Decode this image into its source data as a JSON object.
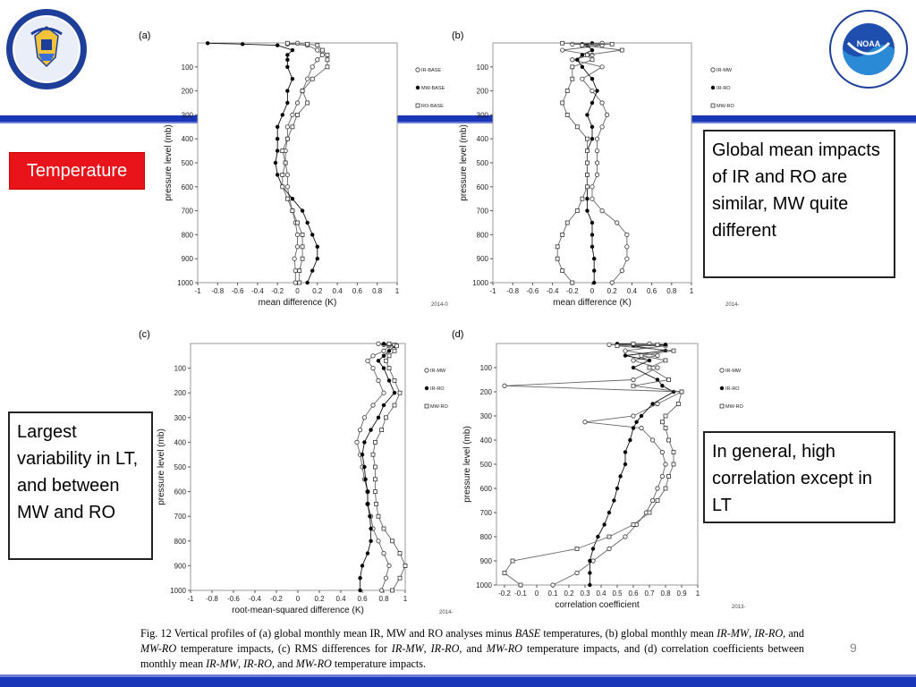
{
  "tag": "Temperature",
  "notes": {
    "top_right": "Global mean impacts of IR and RO are similar, MW quite different",
    "left": "Largest variability in LT, and between MW and RO",
    "bottom_right": "In general, high correlation except in LT"
  },
  "page_number": "9",
  "caption": {
    "p1": "Fig. 12 Vertical profiles of (a) global monthly mean IR, MW and RO analyses minus ",
    "p2": "BASE",
    "p3": " temperatures, (b) global monthly mean ",
    "p4": "IR-MW",
    "p5": ", ",
    "p6": "IR-RO",
    "p7": ", and ",
    "p8": "MW-RO",
    "p9": " temperature impacts, (c) RMS differences for ",
    "p10": "IR-MW",
    "p11": ", ",
    "p12": "IR-RO",
    "p13": ", and ",
    "p14": "MW-RO",
    "p15": " temperature impacts, and (d) correlation coefficients between monthly mean ",
    "p16": "IR-MW",
    "p17": ", ",
    "p18": "IR-RO",
    "p19": ", and ",
    "p20": "MW-RO",
    "p21": " temperature impacts."
  },
  "colors": {
    "bar": "#1a36b8",
    "tag": "#e8141a"
  },
  "chart_data": [
    {
      "panel": "(a)",
      "type": "line",
      "xlabel": "mean difference (K)",
      "ylabel": "pressure level (mb)",
      "xlim": [
        -1,
        1
      ],
      "ylim": [
        1000,
        0
      ],
      "xticks": [
        "-1",
        "-0.8",
        "-0.6",
        "-0.4",
        "-0.2",
        "0",
        "0.2",
        "0.4",
        "0.6",
        "0.8",
        "1"
      ],
      "yticks": [
        100,
        200,
        300,
        400,
        500,
        600,
        700,
        800,
        900,
        1000
      ],
      "footer": "2014-0",
      "legend": "right",
      "pressure": [
        1,
        5,
        10,
        30,
        50,
        70,
        100,
        150,
        200,
        250,
        300,
        350,
        400,
        450,
        500,
        550,
        600,
        650,
        700,
        750,
        800,
        850,
        900,
        950,
        1000
      ],
      "series": [
        {
          "name": "IR-BASE",
          "marker": "open-circle",
          "values": [
            0.0,
            -0.1,
            0.1,
            0.2,
            0.25,
            0.2,
            0.15,
            0.1,
            0.05,
            0.0,
            -0.05,
            -0.1,
            -0.1,
            -0.12,
            -0.12,
            -0.1,
            -0.1,
            -0.08,
            -0.05,
            -0.02,
            0.0,
            0.0,
            -0.03,
            -0.02,
            -0.02
          ]
        },
        {
          "name": "MW-BASE",
          "marker": "filled-circle",
          "values": [
            -0.9,
            -0.55,
            -0.2,
            -0.05,
            -0.1,
            -0.1,
            -0.1,
            -0.05,
            -0.1,
            -0.1,
            -0.15,
            -0.2,
            -0.2,
            -0.2,
            -0.22,
            -0.2,
            -0.15,
            -0.05,
            0.05,
            0.1,
            0.15,
            0.2,
            0.2,
            0.15,
            0.1
          ]
        },
        {
          "name": "RO-BASE",
          "marker": "open-square",
          "values": [
            -0.1,
            0.1,
            0.2,
            0.25,
            0.3,
            0.3,
            0.3,
            0.15,
            0.05,
            0.1,
            0.0,
            -0.05,
            -0.1,
            -0.15,
            -0.12,
            -0.15,
            -0.15,
            -0.1,
            -0.05,
            0.0,
            0.05,
            0.05,
            0.05,
            0.02,
            0.02
          ]
        }
      ]
    },
    {
      "panel": "(b)",
      "type": "line",
      "xlabel": "mean difference (K)",
      "ylabel": "pressure level (mb)",
      "xlim": [
        -1,
        1
      ],
      "ylim": [
        1000,
        0
      ],
      "xticks": [
        "-1",
        "-0.8",
        "-0.6",
        "-0.4",
        "-0.2",
        "0",
        "0.2",
        "0.4",
        "0.6",
        "0.8",
        "1"
      ],
      "yticks": [
        100,
        200,
        300,
        400,
        500,
        600,
        700,
        800,
        900,
        1000
      ],
      "footer": "2014-",
      "legend": "right",
      "pressure": [
        1,
        5,
        10,
        30,
        50,
        70,
        100,
        150,
        200,
        250,
        300,
        350,
        400,
        450,
        500,
        550,
        600,
        650,
        700,
        750,
        800,
        850,
        900,
        950,
        1000
      ],
      "series": [
        {
          "name": "IR-MW",
          "marker": "open-circle",
          "values": [
            0.1,
            -0.2,
            0.1,
            -0.3,
            0.0,
            -0.2,
            0.1,
            -0.1,
            0.0,
            0.1,
            0.15,
            0.1,
            0.05,
            0.05,
            0.05,
            0.05,
            0.0,
            0.0,
            0.1,
            0.25,
            0.35,
            0.35,
            0.35,
            0.3,
            0.2
          ]
        },
        {
          "name": "IR-RO",
          "marker": "filled-circle",
          "values": [
            0.0,
            -0.1,
            -0.05,
            0.0,
            -0.1,
            -0.15,
            -0.1,
            0.0,
            0.05,
            0.0,
            -0.05,
            0.0,
            0.0,
            -0.05,
            -0.05,
            -0.05,
            -0.05,
            -0.05,
            -0.05,
            0.0,
            0.0,
            0.0,
            0.02,
            0.02,
            0.02
          ]
        },
        {
          "name": "MW-RO",
          "marker": "open-square",
          "values": [
            -0.3,
            0.2,
            -0.1,
            0.3,
            -0.05,
            0.0,
            -0.2,
            -0.2,
            -0.25,
            -0.3,
            -0.25,
            -0.15,
            -0.05,
            -0.05,
            -0.05,
            -0.05,
            -0.05,
            -0.1,
            -0.15,
            -0.25,
            -0.3,
            -0.35,
            -0.35,
            -0.3,
            -0.2
          ]
        }
      ]
    },
    {
      "panel": "(c)",
      "type": "line",
      "xlabel": "root-mean-squared difference (K)",
      "ylabel": "pressure level (mb)",
      "xlim": [
        -1,
        1
      ],
      "ylim": [
        1000,
        0
      ],
      "xticks": [
        "-1",
        "-0.8",
        "-0.6",
        "-0.4",
        "-0.2",
        "0",
        "0.2",
        "0.4",
        "0.6",
        "0.8",
        "1"
      ],
      "yticks": [
        100,
        200,
        300,
        400,
        500,
        600,
        700,
        800,
        900,
        1000
      ],
      "footer": "2014-",
      "legend": "right",
      "pressure": [
        1,
        5,
        10,
        30,
        50,
        70,
        100,
        150,
        200,
        250,
        300,
        350,
        400,
        450,
        500,
        550,
        600,
        650,
        700,
        750,
        800,
        850,
        900,
        950,
        1000
      ],
      "series": [
        {
          "name": "IR-MW",
          "marker": "open-circle",
          "values": [
            0.75,
            0.8,
            0.85,
            0.8,
            0.7,
            0.65,
            0.7,
            0.75,
            0.8,
            0.7,
            0.62,
            0.58,
            0.55,
            0.58,
            0.6,
            0.62,
            0.65,
            0.65,
            0.68,
            0.7,
            0.75,
            0.8,
            0.85,
            0.82,
            0.78
          ]
        },
        {
          "name": "IR-RO",
          "marker": "filled-circle",
          "values": [
            0.8,
            0.85,
            0.9,
            0.85,
            0.8,
            0.75,
            0.8,
            0.85,
            0.9,
            0.8,
            0.75,
            0.68,
            0.62,
            0.6,
            0.62,
            0.63,
            0.65,
            0.65,
            0.67,
            0.68,
            0.68,
            0.65,
            0.6,
            0.58,
            0.58
          ]
        },
        {
          "name": "MW-RO",
          "marker": "open-square",
          "values": [
            0.85,
            0.9,
            0.92,
            0.9,
            0.85,
            0.82,
            0.85,
            0.9,
            0.95,
            0.9,
            0.82,
            0.78,
            0.72,
            0.7,
            0.72,
            0.72,
            0.72,
            0.73,
            0.75,
            0.8,
            0.88,
            0.95,
            1.0,
            0.95,
            0.88
          ]
        }
      ]
    },
    {
      "panel": "(d)",
      "type": "line",
      "xlabel": "correlation coefficient",
      "ylabel": "pressure level (mb)",
      "xlim": [
        -0.25,
        1
      ],
      "ylim": [
        1000,
        0
      ],
      "xticks": [
        "-0.2",
        "-0.1",
        "0",
        "0.1",
        "0.2",
        "0.3",
        "0.4",
        "0.5",
        "0.6",
        "0.7",
        "0.8",
        "0.9",
        "1"
      ],
      "yticks": [
        100,
        200,
        300,
        400,
        500,
        600,
        700,
        800,
        900,
        1000
      ],
      "footer": "2013-",
      "legend": "right",
      "pressure": [
        1,
        5,
        10,
        30,
        50,
        70,
        100,
        150,
        175,
        200,
        250,
        300,
        325,
        350,
        400,
        450,
        500,
        550,
        600,
        650,
        700,
        750,
        800,
        850,
        900,
        950,
        1000
      ],
      "series": [
        {
          "name": "IR-MW",
          "marker": "open-circle",
          "values": [
            0.7,
            0.45,
            0.8,
            0.55,
            0.75,
            0.6,
            0.75,
            0.6,
            -0.2,
            0.9,
            0.75,
            0.6,
            0.3,
            0.65,
            0.72,
            0.78,
            0.8,
            0.78,
            0.75,
            0.72,
            0.68,
            0.62,
            0.55,
            0.45,
            0.35,
            0.25,
            0.1
          ]
        },
        {
          "name": "IR-RO",
          "marker": "filled-circle",
          "values": [
            0.5,
            0.8,
            0.6,
            0.8,
            0.55,
            0.7,
            0.6,
            0.75,
            0.78,
            0.85,
            0.72,
            0.65,
            0.62,
            0.6,
            0.58,
            0.55,
            0.55,
            0.52,
            0.5,
            0.48,
            0.45,
            0.42,
            0.38,
            0.35,
            0.33,
            0.33,
            0.33
          ]
        },
        {
          "name": "MW-RO",
          "marker": "open-square",
          "values": [
            0.6,
            0.75,
            0.5,
            0.85,
            0.65,
            0.8,
            0.7,
            0.82,
            0.6,
            0.9,
            0.88,
            0.8,
            0.78,
            0.8,
            0.82,
            0.85,
            0.85,
            0.82,
            0.8,
            0.75,
            0.7,
            0.6,
            0.45,
            0.25,
            -0.15,
            -0.2,
            -0.1
          ]
        }
      ]
    }
  ]
}
